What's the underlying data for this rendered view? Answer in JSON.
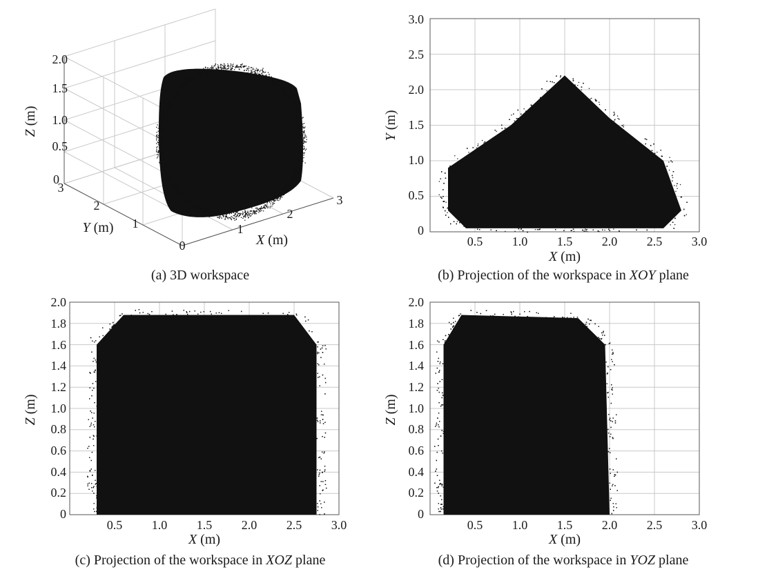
{
  "chart_data": [
    {
      "type": "scatter",
      "subtype": "3d",
      "caption_prefix": "(a) 3D workspace",
      "xlabel": "X",
      "xunit": " (m)",
      "ylabel": "Y",
      "yunit": " (m)",
      "zlabel": "Z",
      "zunit": " (m)",
      "xlim": [
        0,
        3
      ],
      "ylim": [
        0,
        3
      ],
      "zlim": [
        0,
        2
      ],
      "x_ticks": [
        "0",
        "1",
        "2",
        "3"
      ],
      "y_ticks": [
        "0",
        "1",
        "2",
        "3"
      ],
      "z_ticks": [
        "0",
        "0.5",
        "1.0",
        "1.5",
        "2.0"
      ],
      "point_color": "#111111",
      "point_cloud": {
        "x_range": [
          0.2,
          2.8
        ],
        "y_range": [
          0.1,
          2.3
        ],
        "z_range": [
          0.0,
          1.9
        ]
      },
      "grid": true
    },
    {
      "type": "scatter",
      "caption_prefix": "(b) Projection of the workspace in ",
      "caption_italic": "XOY",
      "caption_suffix": " plane",
      "xlabel": "X",
      "xunit": " (m)",
      "ylabel": "Y",
      "yunit": " (m)",
      "xlim": [
        0,
        3.0
      ],
      "ylim": [
        0,
        3.0
      ],
      "x_ticks": [
        "0.5",
        "1.0",
        "1.5",
        "2.0",
        "2.5",
        "3.0"
      ],
      "y_ticks": [
        "0",
        "0.5",
        "1.0",
        "1.5",
        "2.0",
        "2.5",
        "3.0"
      ],
      "point_color": "#111111",
      "region_outline": [
        [
          0.2,
          0.3
        ],
        [
          0.2,
          0.9
        ],
        [
          0.9,
          1.5
        ],
        [
          1.5,
          2.2
        ],
        [
          2.0,
          1.6
        ],
        [
          2.6,
          1.0
        ],
        [
          2.8,
          0.3
        ],
        [
          2.6,
          0.05
        ],
        [
          0.4,
          0.05
        ]
      ],
      "grid": true
    },
    {
      "type": "scatter",
      "caption_prefix": "(c) Projection of the workspace in ",
      "caption_italic": "XOZ",
      "caption_suffix": " plane",
      "xlabel": "X",
      "xunit": " (m)",
      "ylabel": "Z",
      "yunit": " (m)",
      "xlim": [
        0,
        3.0
      ],
      "ylim": [
        0,
        2.0
      ],
      "x_ticks": [
        "0.5",
        "1.0",
        "1.5",
        "2.0",
        "2.5",
        "3.0"
      ],
      "y_ticks": [
        "0",
        "0.2",
        "0.4",
        "0.6",
        "0.8",
        "1.0",
        "1.2",
        "1.4",
        "1.6",
        "1.8",
        "2.0"
      ],
      "point_color": "#111111",
      "region_outline": [
        [
          0.3,
          0.0
        ],
        [
          0.3,
          1.6
        ],
        [
          0.6,
          1.88
        ],
        [
          2.5,
          1.88
        ],
        [
          2.75,
          1.6
        ],
        [
          2.75,
          0.0
        ]
      ],
      "grid": true
    },
    {
      "type": "scatter",
      "caption_prefix": "(d) Projection of the workspace in ",
      "caption_italic": "YOZ",
      "caption_suffix": " plane",
      "xlabel": "X",
      "xunit": " (m)",
      "ylabel": "Z",
      "yunit": " (m)",
      "xlim": [
        0,
        3.0
      ],
      "ylim": [
        0,
        2.0
      ],
      "x_ticks": [
        "0.5",
        "1.0",
        "1.5",
        "2.0",
        "2.5",
        "3.0"
      ],
      "y_ticks": [
        "0",
        "0.2",
        "0.4",
        "0.6",
        "0.8",
        "1.0",
        "1.2",
        "1.4",
        "1.6",
        "1.8",
        "2.0"
      ],
      "point_color": "#111111",
      "region_outline": [
        [
          0.15,
          0.0
        ],
        [
          0.15,
          1.6
        ],
        [
          0.35,
          1.88
        ],
        [
          1.65,
          1.85
        ],
        [
          1.95,
          1.6
        ],
        [
          2.0,
          0.0
        ]
      ],
      "grid": true
    }
  ]
}
